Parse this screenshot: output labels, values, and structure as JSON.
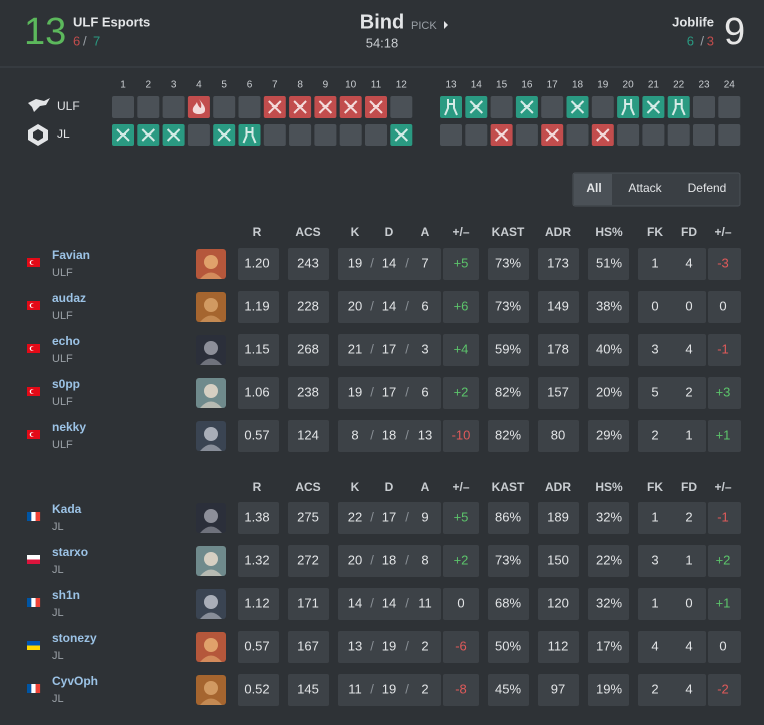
{
  "header": {
    "separator": "/",
    "map": "Bind",
    "pick": "PICK",
    "duration": "54:18",
    "team1": {
      "score": "13",
      "score_color": "#5cb85c",
      "name": "ULF Esports",
      "half_scores": [
        "6",
        "7"
      ]
    },
    "team2": {
      "score": "9",
      "score_color": "#e6e6e6",
      "name": "Joblife",
      "half_scores": [
        "6",
        "3"
      ]
    }
  },
  "timeline": {
    "round_numbers": [
      1,
      2,
      3,
      4,
      5,
      6,
      7,
      8,
      9,
      10,
      11,
      12,
      13,
      14,
      15,
      16,
      17,
      18,
      19,
      20,
      21,
      22,
      23,
      24
    ],
    "teams": [
      {
        "name": "ULF",
        "colors": [
          "#c24d4d",
          "#2a9a82"
        ],
        "results": [
          null,
          null,
          null,
          "boom",
          null,
          null,
          "elim",
          "elim",
          "elim",
          "elim",
          "elim",
          null,
          "defuse",
          "elim",
          null,
          "elim",
          null,
          "elim",
          null,
          "defuse",
          "elim",
          "defuse",
          null,
          null
        ]
      },
      {
        "name": "JL",
        "colors": [
          "#2a9a82",
          "#c24d4d"
        ],
        "results": [
          "elim",
          "elim",
          "elim",
          null,
          "elim",
          "defuse",
          null,
          null,
          null,
          null,
          null,
          "elim",
          null,
          null,
          "elim",
          null,
          "elim",
          null,
          "elim",
          null,
          null,
          null,
          null,
          null
        ]
      }
    ]
  },
  "tabs": {
    "items": [
      "All",
      "Attack",
      "Defend"
    ],
    "active": 0
  },
  "tables": [
    {
      "columns": [
        "R",
        "ACS",
        "K",
        "D",
        "A",
        "+/–",
        "KAST",
        "ADR",
        "HS%",
        "FK",
        "FD",
        "+/–"
      ],
      "rows": [
        {
          "name": "Favian",
          "team": "ULF",
          "flag": "tr",
          "stats": [
            "1.20",
            "243",
            "19",
            "14",
            "7",
            "+5",
            "73%",
            "173",
            "51%",
            "1",
            "4",
            "-3"
          ]
        },
        {
          "name": "audaz",
          "team": "ULF",
          "flag": "tr",
          "stats": [
            "1.19",
            "228",
            "20",
            "14",
            "6",
            "+6",
            "73%",
            "149",
            "38%",
            "0",
            "0",
            "0"
          ]
        },
        {
          "name": "echo",
          "team": "ULF",
          "flag": "tr",
          "stats": [
            "1.15",
            "268",
            "21",
            "17",
            "3",
            "+4",
            "59%",
            "178",
            "40%",
            "3",
            "4",
            "-1"
          ]
        },
        {
          "name": "s0pp",
          "team": "ULF",
          "flag": "tr",
          "stats": [
            "1.06",
            "238",
            "19",
            "17",
            "6",
            "+2",
            "82%",
            "157",
            "20%",
            "5",
            "2",
            "+3"
          ]
        },
        {
          "name": "nekky",
          "team": "ULF",
          "flag": "tr",
          "stats": [
            "0.57",
            "124",
            "8",
            "18",
            "13",
            "-10",
            "82%",
            "80",
            "29%",
            "2",
            "1",
            "+1"
          ]
        }
      ]
    },
    {
      "columns": [
        "R",
        "ACS",
        "K",
        "D",
        "A",
        "+/–",
        "KAST",
        "ADR",
        "HS%",
        "FK",
        "FD",
        "+/–"
      ],
      "rows": [
        {
          "name": "Kada",
          "team": "JL",
          "flag": "fr",
          "stats": [
            "1.38",
            "275",
            "22",
            "17",
            "9",
            "+5",
            "86%",
            "189",
            "32%",
            "1",
            "2",
            "-1"
          ]
        },
        {
          "name": "starxo",
          "team": "JL",
          "flag": "pl",
          "stats": [
            "1.32",
            "272",
            "20",
            "18",
            "8",
            "+2",
            "73%",
            "150",
            "22%",
            "3",
            "1",
            "+2"
          ]
        },
        {
          "name": "sh1n",
          "team": "JL",
          "flag": "fr",
          "stats": [
            "1.12",
            "171",
            "14",
            "14",
            "11",
            "0",
            "68%",
            "120",
            "32%",
            "1",
            "0",
            "+1"
          ]
        },
        {
          "name": "stonezy",
          "team": "JL",
          "flag": "ua",
          "stats": [
            "0.57",
            "167",
            "13",
            "19",
            "2",
            "-6",
            "50%",
            "112",
            "17%",
            "4",
            "4",
            "0"
          ]
        },
        {
          "name": "CyvOph",
          "team": "JL",
          "flag": "fr",
          "stats": [
            "0.52",
            "145",
            "11",
            "19",
            "2",
            "-8",
            "45%",
            "97",
            "19%",
            "2",
            "4",
            "-2"
          ]
        }
      ]
    }
  ]
}
